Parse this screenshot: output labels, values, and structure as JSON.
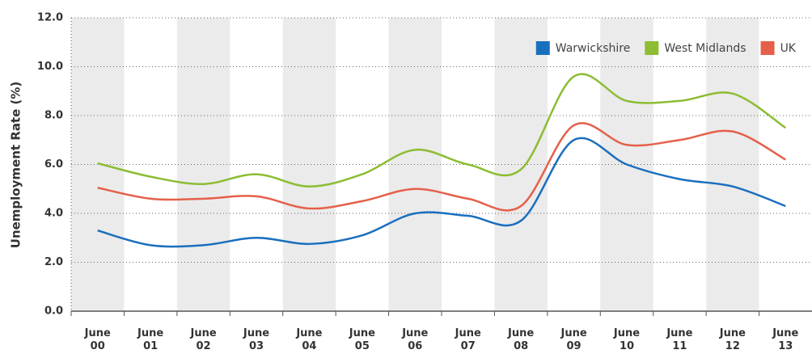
{
  "chart_data": {
    "type": "line",
    "y_label": "Unemployment Rate (%)",
    "categories": [
      "June 00",
      "June 01",
      "June 02",
      "June 03",
      "June 04",
      "June 05",
      "June 06",
      "June 07",
      "June 08",
      "June 09",
      "June 10",
      "June 11",
      "June 12",
      "June 13"
    ],
    "series": [
      {
        "name": "Warwickshire",
        "color": "#1a6fbd",
        "values": [
          3.3,
          2.7,
          2.7,
          3.0,
          2.75,
          3.1,
          4.0,
          3.9,
          3.7,
          7.0,
          6.0,
          5.4,
          5.1,
          4.3
        ]
      },
      {
        "name": "West Midlands",
        "color": "#8cbd33",
        "values": [
          6.05,
          5.5,
          5.2,
          5.6,
          5.1,
          5.6,
          6.6,
          6.0,
          5.8,
          9.6,
          8.6,
          8.6,
          8.9,
          7.5
        ]
      },
      {
        "name": "UK",
        "color": "#e5604a",
        "values": [
          5.05,
          4.6,
          4.6,
          4.7,
          4.2,
          4.5,
          5.0,
          4.6,
          4.3,
          7.6,
          6.8,
          7.0,
          7.35,
          6.2
        ]
      }
    ],
    "ylim": [
      0,
      12
    ],
    "yticks": [
      {
        "value": 0,
        "label": "0.0"
      },
      {
        "value": 2,
        "label": "2.0"
      },
      {
        "value": 4,
        "label": "4.0"
      },
      {
        "value": 6,
        "label": "6.0"
      },
      {
        "value": 8,
        "label": "8.0"
      },
      {
        "value": 10,
        "label": "10.0"
      },
      {
        "value": 12,
        "label": "12.0"
      }
    ],
    "grid": true,
    "legend": "top-right"
  }
}
